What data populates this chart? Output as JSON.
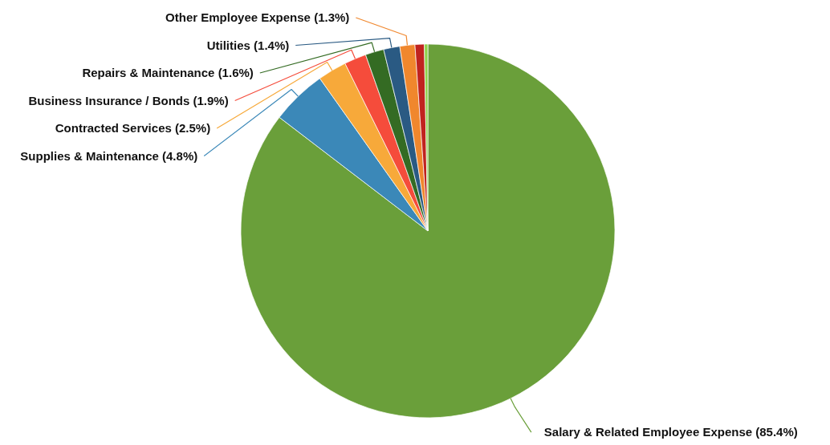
{
  "chart_data": {
    "type": "pie",
    "categories": [
      "Salary & Related Employee Expense",
      "Supplies & Maintenance",
      "Contracted Services",
      "Business Insurance / Bonds",
      "Repairs & Maintenance",
      "Utilities",
      "Other Employee Expense",
      null,
      null
    ],
    "values": [
      85.4,
      4.8,
      2.5,
      1.9,
      1.6,
      1.4,
      1.3,
      0.8,
      0.3
    ],
    "value_labels": [
      "(85.4%)",
      "(4.8%)",
      "(2.5%)",
      "(1.9%)",
      "(1.6%)",
      "(1.4%)",
      "(1.3%)",
      null,
      null
    ],
    "colors": [
      "#6a9f3a",
      "#3b88b8",
      "#f7a93a",
      "#f54c3b",
      "#346b23",
      "#2a5a83",
      "#f0872d",
      "#c0231f",
      "#8fd24b"
    ]
  }
}
